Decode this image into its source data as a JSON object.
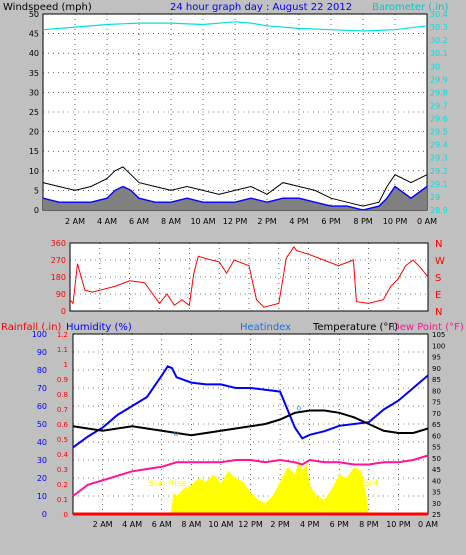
{
  "header": {
    "windspeed_label": "Windspeed (mph)",
    "graph_title": "24 hour graph day : August 22 2012",
    "barometer_label": "Barometer (.in)"
  },
  "bottom_header": {
    "rainfall_label": "Rainfall (.in)",
    "humidity_label": "Humidity (%)",
    "heatindex_label": "Heatindex",
    "temperature_label": "Temperature (°F)",
    "dewpoint_label": "Dew Point (°F)"
  },
  "annotations": {
    "sunrise": "Sun Rise",
    "sunset": "Set"
  },
  "colors": {
    "background": "#c0c0c0",
    "plot_bg": "#ffffff",
    "wind_gust": "#000000",
    "wind_avg": "#0000ff",
    "wind_fill": "#808080",
    "barometer": "#00e0e0",
    "direction": "#ff0000",
    "humidity": "#0000ff",
    "temperature": "#000000",
    "dewpoint": "#ff1493",
    "rainfall": "#ff0000",
    "solar": "#ffff00",
    "heatindex_marker": "#1e90ff",
    "title_blue": "#0000ff",
    "label_red": "#ff0000"
  },
  "chart_data": [
    {
      "type": "line",
      "title": "24 hour graph day : August 22 2012",
      "xlabel": "",
      "ylabel": "Windspeed (mph)",
      "y2label": "Barometer (.in)",
      "x_ticks": [
        "2 AM",
        "4 AM",
        "6 AM",
        "8 AM",
        "10 AM",
        "12 PM",
        "2 PM",
        "4 PM",
        "6 PM",
        "8 PM",
        "10 PM",
        "0 AM"
      ],
      "ylim": [
        0,
        50
      ],
      "y_ticks": [
        0,
        5,
        10,
        15,
        20,
        25,
        30,
        35,
        40,
        45,
        50
      ],
      "y2lim": [
        28.9,
        30.4
      ],
      "y2_ticks": [
        "28.9",
        "29",
        "29.1",
        "29.2",
        "29.3",
        "29.4",
        "29.5",
        "29.6",
        "29.7",
        "29.8",
        "29.9",
        "30",
        "30.1",
        "30.2",
        "30.3",
        "30.4"
      ],
      "grid": true,
      "series": [
        {
          "name": "Windspeed gust",
          "hours": [
            0,
            1,
            2,
            3,
            4,
            4.5,
            5,
            5.5,
            6,
            7,
            8,
            9,
            10,
            11,
            12,
            13,
            14,
            15,
            16,
            17,
            18,
            19,
            20,
            21,
            21.5,
            22,
            23,
            24
          ],
          "values": [
            7,
            6,
            5,
            6,
            8,
            10,
            11,
            9,
            7,
            6,
            5,
            6,
            5,
            4,
            5,
            6,
            4,
            7,
            6,
            5,
            3,
            2,
            1,
            2,
            6,
            9,
            7,
            9
          ]
        },
        {
          "name": "Windspeed average",
          "hours": [
            0,
            1,
            2,
            3,
            4,
            4.5,
            5,
            5.5,
            6,
            7,
            8,
            9,
            10,
            11,
            12,
            13,
            14,
            15,
            16,
            17,
            18,
            19,
            20,
            21,
            21.5,
            22,
            23,
            24
          ],
          "values": [
            3,
            2,
            2,
            2,
            3,
            5,
            6,
            5,
            3,
            2,
            2,
            3,
            2,
            2,
            2,
            3,
            2,
            3,
            3,
            2,
            1,
            1,
            0,
            1,
            3,
            6,
            3,
            6
          ]
        },
        {
          "name": "Barometer",
          "hours": [
            0,
            2,
            4,
            6,
            8,
            10,
            12,
            13,
            14,
            16,
            18,
            20,
            22,
            24
          ],
          "values": [
            30.28,
            30.3,
            30.32,
            30.33,
            30.33,
            30.32,
            30.34,
            30.33,
            30.31,
            30.29,
            30.28,
            30.27,
            30.28,
            30.31
          ]
        }
      ]
    },
    {
      "type": "line",
      "title": "",
      "ylabel": "",
      "ylim": [
        0,
        360
      ],
      "y_ticks": [
        0,
        90,
        180,
        270,
        360
      ],
      "y2_ticks": [
        "N",
        "W",
        "S",
        "E",
        "N"
      ],
      "grid": true,
      "series": [
        {
          "name": "Wind direction",
          "hours": [
            0,
            0.2,
            0.5,
            1,
            1.5,
            2,
            3,
            4,
            5,
            6,
            6.5,
            7,
            7.5,
            8,
            8.3,
            8.6,
            9,
            10,
            10.5,
            11,
            12,
            12.5,
            13,
            14,
            14.5,
            15,
            15.2,
            16,
            17,
            18,
            19,
            19.2,
            20,
            21,
            21.5,
            22,
            22.5,
            23,
            23.5,
            24
          ],
          "values": [
            60,
            40,
            250,
            110,
            100,
            110,
            130,
            160,
            150,
            40,
            90,
            30,
            60,
            30,
            200,
            290,
            280,
            260,
            200,
            270,
            240,
            60,
            20,
            40,
            280,
            340,
            320,
            300,
            270,
            240,
            270,
            50,
            40,
            60,
            130,
            170,
            240,
            270,
            230,
            180
          ]
        }
      ]
    },
    {
      "type": "line",
      "title": "",
      "ylabel": "Humidity (%)",
      "y2label": "Temperature (°F)",
      "rain_ticks": [
        "0",
        "0.1",
        "0.2",
        "0.3",
        "0.4",
        "0.5",
        "0.6",
        "0.7",
        "0.8",
        "0.9",
        "1",
        "1.1",
        "1.2"
      ],
      "ylim": [
        0,
        100
      ],
      "y_ticks": [
        0,
        10,
        20,
        30,
        40,
        50,
        60,
        70,
        80,
        90,
        100
      ],
      "y2lim": [
        25,
        105
      ],
      "y2_ticks": [
        25,
        30,
        35,
        40,
        45,
        50,
        55,
        60,
        65,
        70,
        75,
        80,
        85,
        90,
        95,
        100,
        105
      ],
      "grid": true,
      "series": [
        {
          "name": "Temperature",
          "hours": [
            0,
            1,
            2,
            3,
            4,
            5,
            6,
            7,
            8,
            9,
            10,
            11,
            12,
            13,
            14,
            15,
            16,
            17,
            18,
            19,
            20,
            21,
            22,
            23,
            24
          ],
          "values": [
            64,
            63,
            62,
            63,
            64,
            63,
            62,
            61,
            60,
            61,
            62,
            63,
            64,
            65,
            67,
            70,
            71,
            71,
            70,
            68,
            65,
            62,
            61,
            61,
            63
          ]
        },
        {
          "name": "Humidity",
          "hours": [
            0,
            1,
            2,
            3,
            4,
            5,
            6,
            6.4,
            6.7,
            7,
            8,
            9,
            10,
            11,
            12,
            13,
            14,
            15,
            15.5,
            16,
            17,
            18,
            19,
            20,
            21,
            22,
            23,
            24
          ],
          "values": [
            37,
            43,
            48,
            55,
            60,
            65,
            77,
            82,
            81,
            76,
            73,
            72,
            72,
            70,
            70,
            69,
            68,
            48,
            42,
            44,
            46,
            49,
            50,
            51,
            58,
            63,
            70,
            77
          ]
        },
        {
          "name": "Dew Point",
          "hours": [
            0,
            1,
            2,
            3,
            4,
            5,
            6,
            7,
            8,
            9,
            10,
            11,
            12,
            13,
            14,
            15,
            15.5,
            16,
            17,
            18,
            19,
            20,
            21,
            22,
            23,
            24
          ],
          "values": [
            33,
            38,
            40,
            42,
            44,
            45,
            46,
            48,
            48,
            48,
            48,
            49,
            49,
            48,
            49,
            48,
            47,
            49,
            48,
            48,
            47,
            47,
            48,
            48,
            49,
            51
          ]
        },
        {
          "name": "Solar",
          "hours": [
            0,
            6.6,
            6.8,
            7,
            7.5,
            8,
            8.5,
            9,
            9.5,
            10,
            10.5,
            11,
            11.5,
            12,
            12.5,
            13,
            13.5,
            14,
            14.5,
            15,
            15.3,
            15.5,
            15.8,
            16,
            16.5,
            17,
            17.5,
            18,
            18.5,
            19,
            19.5,
            19.8,
            20,
            24
          ],
          "values": [
            0,
            0,
            12,
            10,
            14,
            16,
            20,
            18,
            22,
            17,
            24,
            20,
            18,
            12,
            8,
            6,
            10,
            18,
            26,
            22,
            30,
            24,
            28,
            16,
            10,
            8,
            14,
            22,
            20,
            26,
            24,
            12,
            0,
            0
          ]
        },
        {
          "name": "Rainfall",
          "hours": [
            0,
            24
          ],
          "values": [
            0,
            0
          ]
        }
      ]
    }
  ]
}
